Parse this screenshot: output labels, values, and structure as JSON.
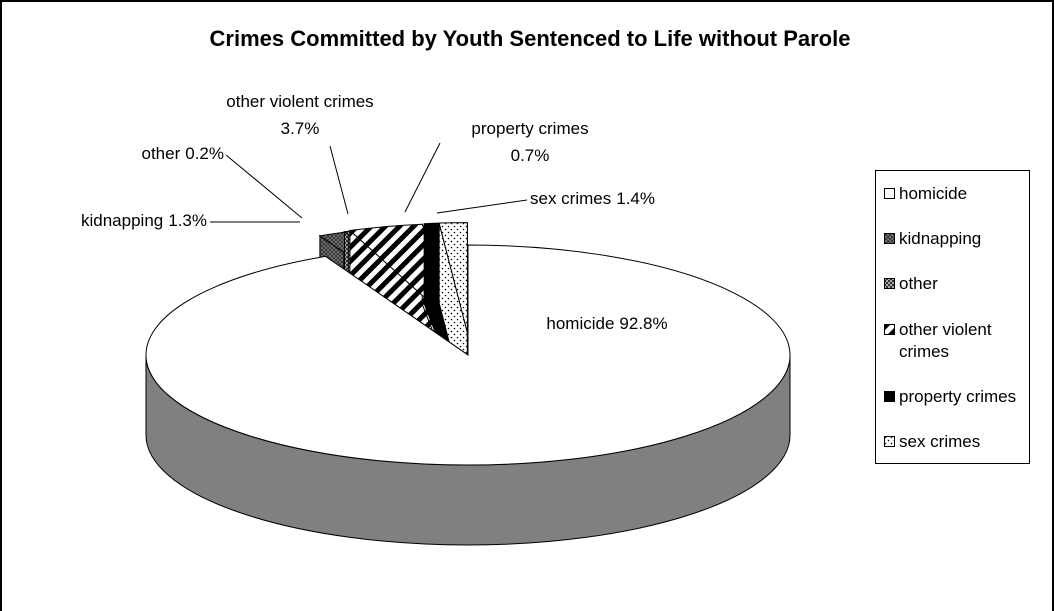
{
  "chart_data": {
    "type": "pie3d",
    "title": "Crimes Committed by Youth Sentenced to Life without Parole",
    "categories": [
      "homicide",
      "kidnapping",
      "other",
      "other violent crimes",
      "property crimes",
      "sex crimes"
    ],
    "values": [
      92.8,
      1.3,
      0.2,
      3.7,
      0.7,
      1.4
    ],
    "value_labels": [
      "92.8%",
      "1.3%",
      "0.2%",
      "3.7%",
      "0.7%",
      "1.4%"
    ],
    "colors": [
      "#ffffff",
      "#808080",
      "#333333",
      "#ffffff",
      "#000000",
      "#ffffff"
    ],
    "legend": "right"
  }
}
